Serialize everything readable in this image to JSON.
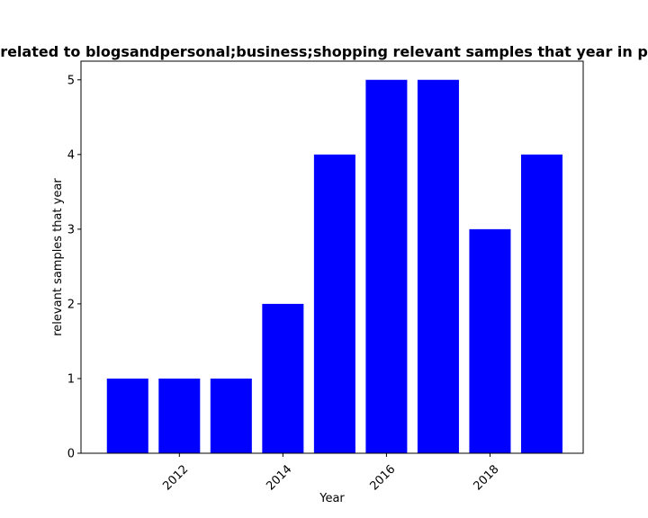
{
  "chart_data": {
    "type": "bar",
    "title": "related to blogsandpersonal;business;shopping relevant samples that year in p",
    "xlabel": "Year",
    "ylabel": "relevant samples that year",
    "x": [
      2011,
      2012,
      2013,
      2014,
      2015,
      2016,
      2017,
      2018,
      2019
    ],
    "values": [
      1,
      1,
      1,
      2,
      4,
      5,
      5,
      3,
      4
    ],
    "x_ticks": [
      2012,
      2014,
      2016,
      2018
    ],
    "x_tick_labels": [
      "2012",
      "2014",
      "2016",
      "2018"
    ],
    "y_ticks": [
      0,
      1,
      2,
      3,
      4,
      5
    ],
    "y_tick_labels": [
      "0",
      "1",
      "2",
      "3",
      "4",
      "5"
    ],
    "xlim": [
      2010.1,
      2019.8
    ],
    "ylim": [
      0,
      5.25
    ],
    "bar_color": "#0000ff",
    "grid": false,
    "legend": false
  }
}
